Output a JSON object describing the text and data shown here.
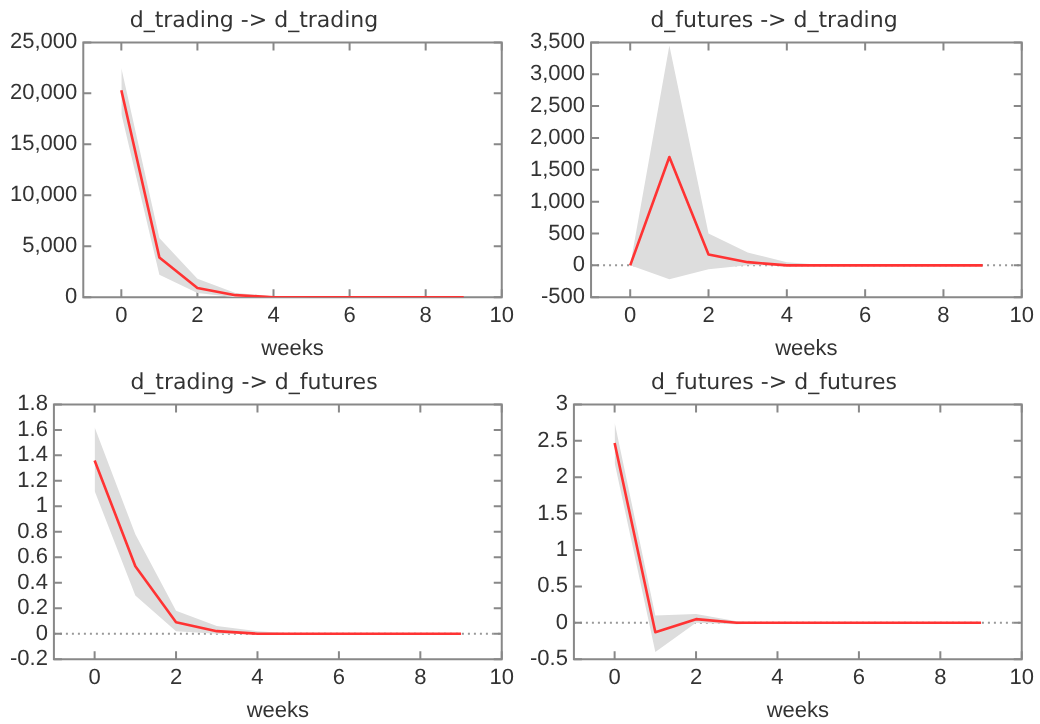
{
  "chart_data": [
    {
      "type": "line",
      "title": "d_trading -> d_trading",
      "xlabel": "weeks",
      "x": [
        0,
        1,
        2,
        3,
        4,
        5,
        6,
        7,
        8,
        9
      ],
      "xlim": [
        -1,
        10
      ],
      "xticks": [
        0,
        2,
        4,
        6,
        8,
        10
      ],
      "ylim": [
        0,
        25000
      ],
      "yticks": [
        0,
        {
          "value": 5000,
          "label": "5,000"
        },
        {
          "value": 10000,
          "label": "10,000"
        },
        {
          "value": 15000,
          "label": "15,000"
        },
        {
          "value": 20000,
          "label": "20,000"
        },
        {
          "value": 25000,
          "label": "25,000"
        }
      ],
      "grid": false,
      "legend": false,
      "line_style": "solid",
      "marker": "none",
      "series": [
        {
          "color": "#ff3333",
          "values": [
            20300,
            3900,
            900,
            200,
            0,
            0,
            0,
            0,
            0,
            0
          ],
          "lower": [
            18000,
            2200,
            400,
            0,
            0,
            0,
            0,
            0,
            0,
            0
          ],
          "upper": [
            22500,
            5800,
            1800,
            400,
            100,
            0,
            0,
            0,
            0,
            0
          ]
        }
      ]
    },
    {
      "type": "line",
      "title": "d_futures -> d_trading",
      "xlabel": "weeks",
      "x": [
        0,
        1,
        2,
        3,
        4,
        5,
        6,
        7,
        8,
        9
      ],
      "xlim": [
        -1,
        10
      ],
      "xticks": [
        0,
        2,
        4,
        6,
        8,
        10
      ],
      "ylim": [
        -500,
        3500
      ],
      "yticks": [
        -500,
        0,
        500,
        {
          "value": 1000,
          "label": "1,000"
        },
        {
          "value": 1500,
          "label": "1,500"
        },
        {
          "value": 2000,
          "label": "2,000"
        },
        {
          "value": 2500,
          "label": "2,500"
        },
        {
          "value": 3000,
          "label": "3,000"
        },
        {
          "value": 3500,
          "label": "3,500"
        }
      ],
      "grid": false,
      "legend": false,
      "line_style": "solid",
      "marker": "none",
      "ref_lines": [
        {
          "axis": "y",
          "value": 0,
          "color": "#999999",
          "line_style": "dotted"
        }
      ],
      "series": [
        {
          "color": "#ff3333",
          "values": [
            0,
            1700,
            170,
            50,
            0,
            0,
            0,
            0,
            0,
            0
          ],
          "lower": [
            0,
            -220,
            -60,
            0,
            0,
            0,
            0,
            0,
            0,
            0
          ],
          "upper": [
            0,
            3450,
            500,
            200,
            50,
            0,
            0,
            0,
            0,
            0
          ]
        }
      ]
    },
    {
      "type": "line",
      "title": "d_trading -> d_futures",
      "xlabel": "weeks",
      "x": [
        0,
        1,
        2,
        3,
        4,
        5,
        6,
        7,
        8,
        9
      ],
      "xlim": [
        -1,
        10
      ],
      "xticks": [
        0,
        2,
        4,
        6,
        8,
        10
      ],
      "ylim": [
        -0.2,
        1.8
      ],
      "yticks": [
        -0.2,
        0,
        0.2,
        0.4,
        0.6,
        0.8,
        1,
        1.2,
        1.4,
        1.6,
        1.8
      ],
      "grid": false,
      "legend": false,
      "line_style": "solid",
      "marker": "none",
      "ref_lines": [
        {
          "axis": "y",
          "value": 0,
          "color": "#999999",
          "line_style": "dotted"
        }
      ],
      "series": [
        {
          "color": "#ff3333",
          "values": [
            1.36,
            0.53,
            0.09,
            0.02,
            0,
            0,
            0,
            0,
            0,
            0
          ],
          "lower": [
            1.12,
            0.3,
            0.02,
            0,
            0,
            0,
            0,
            0,
            0,
            0
          ],
          "upper": [
            1.62,
            0.78,
            0.18,
            0.06,
            0.02,
            0,
            0,
            0,
            0,
            0
          ]
        }
      ]
    },
    {
      "type": "line",
      "title": "d_futures -> d_futures",
      "xlabel": "weeks",
      "x": [
        0,
        1,
        2,
        3,
        4,
        5,
        6,
        7,
        8,
        9
      ],
      "xlim": [
        -1,
        10
      ],
      "xticks": [
        0,
        2,
        4,
        6,
        8,
        10
      ],
      "ylim": [
        -0.5,
        3
      ],
      "yticks": [
        -0.5,
        0,
        0.5,
        1,
        1.5,
        2,
        2.5,
        3
      ],
      "grid": false,
      "legend": false,
      "line_style": "solid",
      "marker": "none",
      "ref_lines": [
        {
          "axis": "y",
          "value": 0,
          "color": "#999999",
          "line_style": "dotted"
        }
      ],
      "series": [
        {
          "color": "#ff3333",
          "values": [
            2.47,
            -0.13,
            0.05,
            0,
            0,
            0,
            0,
            0,
            0,
            0
          ],
          "lower": [
            2.2,
            -0.4,
            0,
            -0.02,
            0,
            0,
            0,
            0,
            0,
            0
          ],
          "upper": [
            2.75,
            0.1,
            0.12,
            0.02,
            0,
            0,
            0,
            0,
            0,
            0
          ]
        }
      ]
    }
  ]
}
